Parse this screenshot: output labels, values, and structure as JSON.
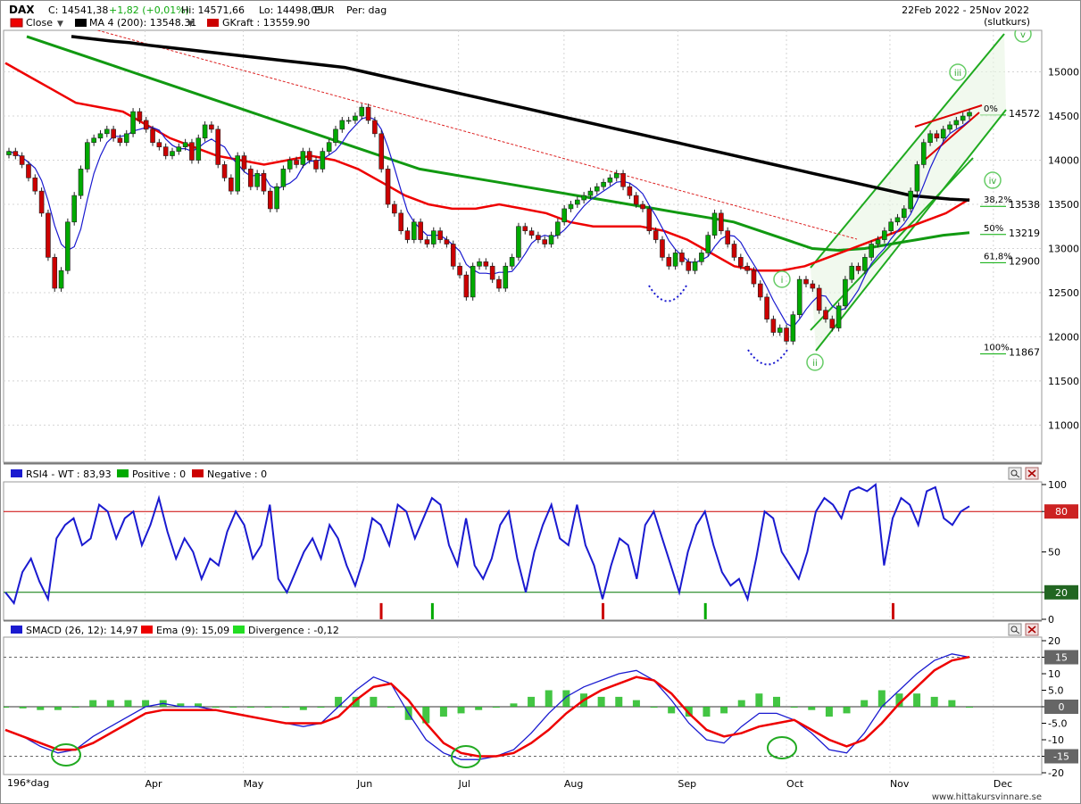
{
  "header": {
    "symbol": "DAX",
    "close_info": "C: 14541,38",
    "change_info": "+1,82 (+0,01%)",
    "high_info": "Hi: 14571,66",
    "low_info": "Lo: 14498,05",
    "currency": "EUR",
    "period": "Per: dag",
    "date_range": "22Feb 2022 - 25Nov 2022",
    "price_type": "(slutkurs)"
  },
  "legend": {
    "close": "Close",
    "ma": "MA 4 (200): 13548.31",
    "gkraft": "GKraft : 13559.90"
  },
  "rsi_legend": {
    "rsi": "RSI4 - WT : 83,93",
    "positive": "Positive : 0",
    "negative": "Negative : 0"
  },
  "macd_legend": {
    "smacd": "SMACD (26, 12): 14,97",
    "ema": "Ema (9): 15,09",
    "divergence": "Divergence : -0,12"
  },
  "bottom_label": "196*dag",
  "watermark": "www.hittakursvinnare.se",
  "wave_labels": [
    "i",
    "ii",
    "iii",
    "iv",
    "v"
  ],
  "colors": {
    "up": "#00aa00",
    "down": "#cc0000",
    "ma200": "#000000",
    "gkraft": "#ee0000",
    "green_ma": "#119911",
    "blue": "#1a1ad0",
    "channel": "#1faa1f",
    "divergence": "#22bb22"
  },
  "chart_data": [
    {
      "type": "candlestick",
      "title": "DAX",
      "x_ticks": [
        "Apr",
        "May",
        "Jun",
        "Jul",
        "Aug",
        "Sep",
        "Oct",
        "Nov",
        "Dec"
      ],
      "y_ticks": [
        11000,
        11500,
        12000,
        12500,
        13000,
        13500,
        14000,
        14500,
        15000
      ],
      "ylim": [
        10600,
        15450
      ],
      "series": [
        {
          "name": "Close",
          "values": [
            14100,
            14050,
            13950,
            13800,
            13650,
            13400,
            12900,
            12550,
            12750,
            13300,
            13600,
            13900,
            14200,
            14250,
            14300,
            14350,
            14250,
            14200,
            14300,
            14550,
            14450,
            14350,
            14200,
            14150,
            14050,
            14100,
            14150,
            14200,
            14000,
            14250,
            14400,
            14350,
            13950,
            13800,
            13650,
            14050,
            13900,
            13700,
            13850,
            13650,
            13450,
            13700,
            13900,
            14000,
            13950,
            14100,
            14000,
            13900,
            14100,
            14200,
            14350,
            14450,
            14450,
            14500,
            14600,
            14450,
            14300,
            13900,
            13500,
            13400,
            13200,
            13100,
            13300,
            13100,
            13050,
            13200,
            13100,
            13050,
            12800,
            12700,
            12450,
            12800,
            12850,
            12800,
            12650,
            12550,
            12800,
            12900,
            13250,
            13200,
            13150,
            13100,
            13050,
            13150,
            13300,
            13450,
            13500,
            13550,
            13600,
            13650,
            13700,
            13750,
            13800,
            13850,
            13700,
            13600,
            13500,
            13450,
            13200,
            13100,
            12900,
            12800,
            12950,
            12850,
            12750,
            12850,
            12950,
            13150,
            13400,
            13200,
            13050,
            12900,
            12800,
            12750,
            12600,
            12450,
            12200,
            12050,
            12100,
            11950,
            12250,
            12650,
            12600,
            12550,
            12300,
            12200,
            12100,
            12350,
            12650,
            12800,
            12750,
            12900,
            13050,
            13100,
            13200,
            13300,
            13350,
            13450,
            13650,
            13950,
            14200,
            14300,
            14250,
            14350,
            14400,
            14450,
            14500,
            14541
          ]
        },
        {
          "name": "MA 4 (200)",
          "values": [
            15400,
            15375,
            15350,
            15330,
            15300,
            15275,
            15250,
            15225,
            15200,
            15175,
            15150,
            15125,
            15100,
            15075,
            15050,
            15000,
            14950,
            14900,
            14850,
            14800,
            14750,
            14700,
            14650,
            14600,
            14550,
            14500,
            14450,
            14400,
            14350,
            14300,
            14250,
            14200,
            14150,
            14100,
            14050,
            14000,
            13950,
            13900,
            13850,
            13800,
            13750,
            13700,
            13650,
            13600,
            13580,
            13560,
            13548
          ]
        },
        {
          "name": "GKraft",
          "values": [
            15100,
            14950,
            14800,
            14650,
            14600,
            14550,
            14400,
            14250,
            14150,
            14050,
            14000,
            13950,
            14000,
            14050,
            14000,
            13900,
            13750,
            13600,
            13500,
            13450,
            13450,
            13500,
            13450,
            13400,
            13300,
            13250,
            13250,
            13250,
            13200,
            13100,
            12950,
            12800,
            12750,
            12750,
            12800,
            12900,
            13000,
            13100,
            13200,
            13300,
            13400,
            13560
          ]
        },
        {
          "name": "GKraft 200",
          "values": [
            15400,
            15300,
            15200,
            15100,
            15000,
            14900,
            14800,
            14700,
            14600,
            14500,
            14400,
            14300,
            14200,
            14100,
            14000,
            13900,
            13850,
            13800,
            13750,
            13700,
            13650,
            13600,
            13550,
            13500,
            13450,
            13400,
            13350,
            13300,
            13200,
            13100,
            13000,
            12980,
            13000,
            13050,
            13100,
            13150,
            13180
          ]
        }
      ],
      "fib_levels": [
        {
          "label": "0%",
          "value": 14572
        },
        {
          "label": "38,2%",
          "value": 13538
        },
        {
          "label": "50%",
          "value": 13219
        },
        {
          "label": "61,8%",
          "value": 12900
        },
        {
          "label": "100%",
          "value": 11867
        }
      ]
    },
    {
      "type": "line",
      "title": "RSI4 - WT",
      "y_ticks": [
        0,
        20,
        50,
        80,
        100
      ],
      "ylim": [
        0,
        100
      ],
      "reference_levels": [
        80,
        20
      ],
      "series": [
        {
          "name": "RSI4 - WT",
          "values": [
            20,
            12,
            35,
            45,
            28,
            15,
            60,
            70,
            75,
            55,
            60,
            85,
            80,
            60,
            75,
            80,
            55,
            70,
            90,
            65,
            45,
            60,
            50,
            30,
            45,
            40,
            65,
            80,
            70,
            45,
            55,
            85,
            30,
            20,
            35,
            50,
            60,
            45,
            70,
            60,
            40,
            25,
            45,
            75,
            70,
            55,
            85,
            80,
            60,
            75,
            90,
            85,
            55,
            40,
            75,
            40,
            30,
            45,
            70,
            80,
            45,
            20,
            50,
            70,
            85,
            60,
            55,
            85,
            55,
            40,
            15,
            40,
            60,
            55,
            30,
            70,
            80,
            60,
            40,
            20,
            50,
            70,
            80,
            55,
            35,
            25,
            30,
            15,
            45,
            80,
            75,
            50,
            40,
            30,
            50,
            80,
            90,
            85,
            75,
            95,
            98,
            95,
            100,
            40,
            75,
            90,
            85,
            70,
            95,
            98,
            75,
            70,
            80,
            83.93
          ]
        }
      ],
      "markers": [
        {
          "x_index": 44,
          "polarity": "negative"
        },
        {
          "x_index": 50,
          "polarity": "positive"
        },
        {
          "x_index": 70,
          "polarity": "negative"
        },
        {
          "x_index": 82,
          "polarity": "positive"
        },
        {
          "x_index": 104,
          "polarity": "negative"
        }
      ]
    },
    {
      "type": "line",
      "title": "SMACD (26, 12)",
      "y_ticks": [
        -20,
        -15,
        -10,
        -5,
        0,
        5,
        10,
        15,
        20
      ],
      "ylim": [
        -20,
        20
      ],
      "series": [
        {
          "name": "SMACD (26, 12)",
          "values": [
            -7,
            -9,
            -12,
            -14,
            -13,
            -9,
            -6,
            -3,
            0,
            1,
            0,
            0,
            -1,
            -2,
            -3,
            -4,
            -5,
            -6,
            -5,
            0,
            5,
            9,
            7,
            -2,
            -10,
            -14,
            -16,
            -16,
            -15,
            -13,
            -8,
            -2,
            3,
            6,
            8,
            10,
            11,
            8,
            2,
            -5,
            -10,
            -11,
            -6,
            -2,
            -2,
            -4,
            -8,
            -13,
            -14,
            -8,
            0,
            5,
            10,
            14,
            16,
            15
          ]
        },
        {
          "name": "Ema (9)",
          "values": [
            -7,
            -9,
            -11,
            -13,
            -13,
            -11,
            -8,
            -5,
            -2,
            -1,
            -1,
            -1,
            -1,
            -2,
            -3,
            -4,
            -5,
            -5,
            -5,
            -3,
            2,
            6,
            7,
            2,
            -5,
            -11,
            -14,
            -15,
            -15,
            -14,
            -11,
            -7,
            -2,
            2,
            5,
            7,
            9,
            8,
            4,
            -2,
            -7,
            -9,
            -8,
            -6,
            -5,
            -4,
            -7,
            -10,
            -12,
            -10,
            -5,
            1,
            6,
            11,
            14,
            15.09
          ]
        },
        {
          "name": "Divergence",
          "values": [
            0,
            -0.5,
            -1,
            -1,
            0,
            2,
            2,
            2,
            2,
            2,
            1,
            1,
            0,
            0,
            0,
            0,
            0,
            -1,
            0,
            3,
            3,
            3,
            0,
            -4,
            -5,
            -3,
            -2,
            -1,
            0,
            1,
            3,
            5,
            5,
            4,
            3,
            3,
            2,
            0,
            -2,
            -3,
            -3,
            -2,
            2,
            4,
            3,
            0,
            -1,
            -3,
            -2,
            2,
            5,
            4,
            4,
            3,
            2,
            0
          ]
        }
      ]
    }
  ]
}
